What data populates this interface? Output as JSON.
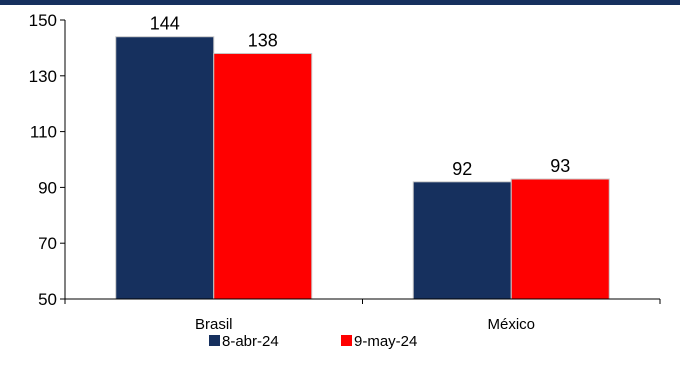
{
  "chart_data": {
    "type": "bar",
    "categories": [
      "Brasil",
      "México"
    ],
    "series": [
      {
        "name": "8-abr-24",
        "values": [
          144,
          92
        ],
        "color": "#16305e"
      },
      {
        "name": "9-may-24",
        "values": [
          138,
          93
        ],
        "color": "#ff0000"
      }
    ],
    "ylim": [
      50,
      150
    ],
    "yticks": [
      50,
      70,
      90,
      110,
      130,
      150
    ],
    "data_labels": true,
    "grid": false,
    "legend_position": "bottom-center",
    "title": "",
    "xlabel": "",
    "ylabel": ""
  }
}
